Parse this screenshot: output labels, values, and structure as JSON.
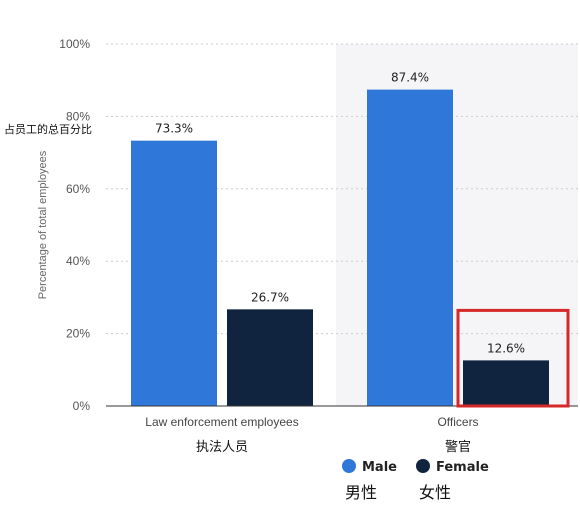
{
  "colors": {
    "male": "#2f77d9",
    "female": "#10243f",
    "highlight_bg": "#f5f5f7",
    "highlight_box": "#d62828",
    "grid": "#cccccc"
  },
  "annotations": {
    "y_label_cn": "占员工的总百分比",
    "category_cn": [
      "执法人员",
      "警官"
    ],
    "legend_cn": [
      "男性",
      "女性"
    ]
  },
  "chart_data": {
    "type": "bar",
    "categories": [
      "Law enforcement employees",
      "Officers"
    ],
    "series": [
      {
        "name": "Male",
        "values": [
          73.3,
          87.4
        ],
        "labels": [
          "73.3%",
          "87.4%"
        ]
      },
      {
        "name": "Female",
        "values": [
          26.7,
          12.6
        ],
        "labels": [
          "26.7%",
          "12.6%"
        ]
      }
    ],
    "ylabel": "Percentage of total employees",
    "ylim": [
      0,
      100
    ],
    "yticks": [
      0,
      20,
      40,
      60,
      80,
      100
    ],
    "ytick_labels": [
      "0%",
      "20%",
      "40%",
      "60%",
      "80%",
      "100%"
    ],
    "grid": true,
    "legend_position": "bottom",
    "highlighted": {
      "category": "Officers",
      "series": "Female"
    }
  }
}
